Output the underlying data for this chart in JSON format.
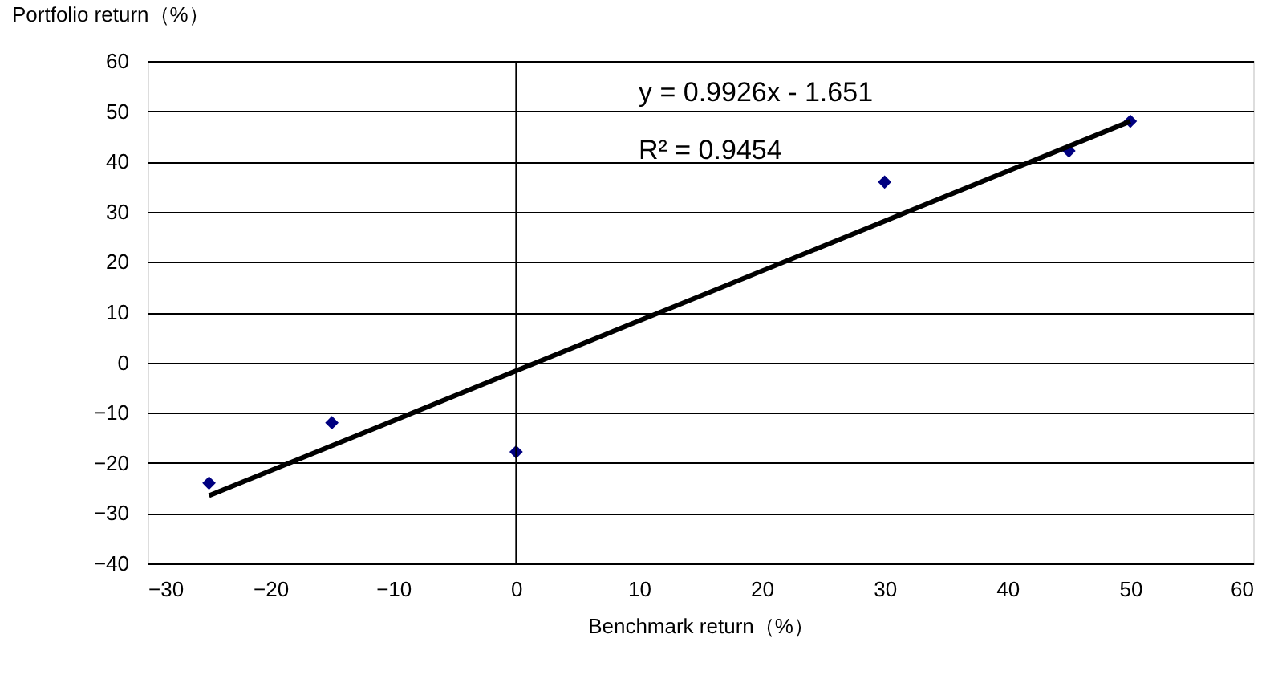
{
  "chart_data": {
    "type": "scatter",
    "xlabel": "Benchmark return（%）",
    "ylabel": "Portfolio return（%）",
    "xlim": [
      -30,
      60
    ],
    "xticks": [
      -30,
      -20,
      -10,
      0,
      10,
      20,
      30,
      40,
      50,
      60
    ],
    "ylim": [
      -40,
      60
    ],
    "yticks": [
      -40,
      -30,
      -20,
      -10,
      0,
      10,
      20,
      30,
      40,
      50,
      60
    ],
    "grid": "y",
    "marker": "diamond",
    "x": [
      -25,
      -15,
      0,
      30,
      45,
      50
    ],
    "series": [
      {
        "color": "#000080",
        "values": [
          -24,
          -12,
          -17.8,
          35.9,
          42.1,
          48
        ]
      },
      {
        "type": "line",
        "color": "#000000",
        "x": [
          -25,
          50
        ],
        "values": [
          -26.5,
          48.0
        ],
        "marker": "none"
      }
    ],
    "ref_lines": [
      {
        "axis": "x",
        "value": 0
      }
    ],
    "annotations": [
      "y = 0.9926x - 1.651",
      "R² = 0.9454"
    ]
  }
}
